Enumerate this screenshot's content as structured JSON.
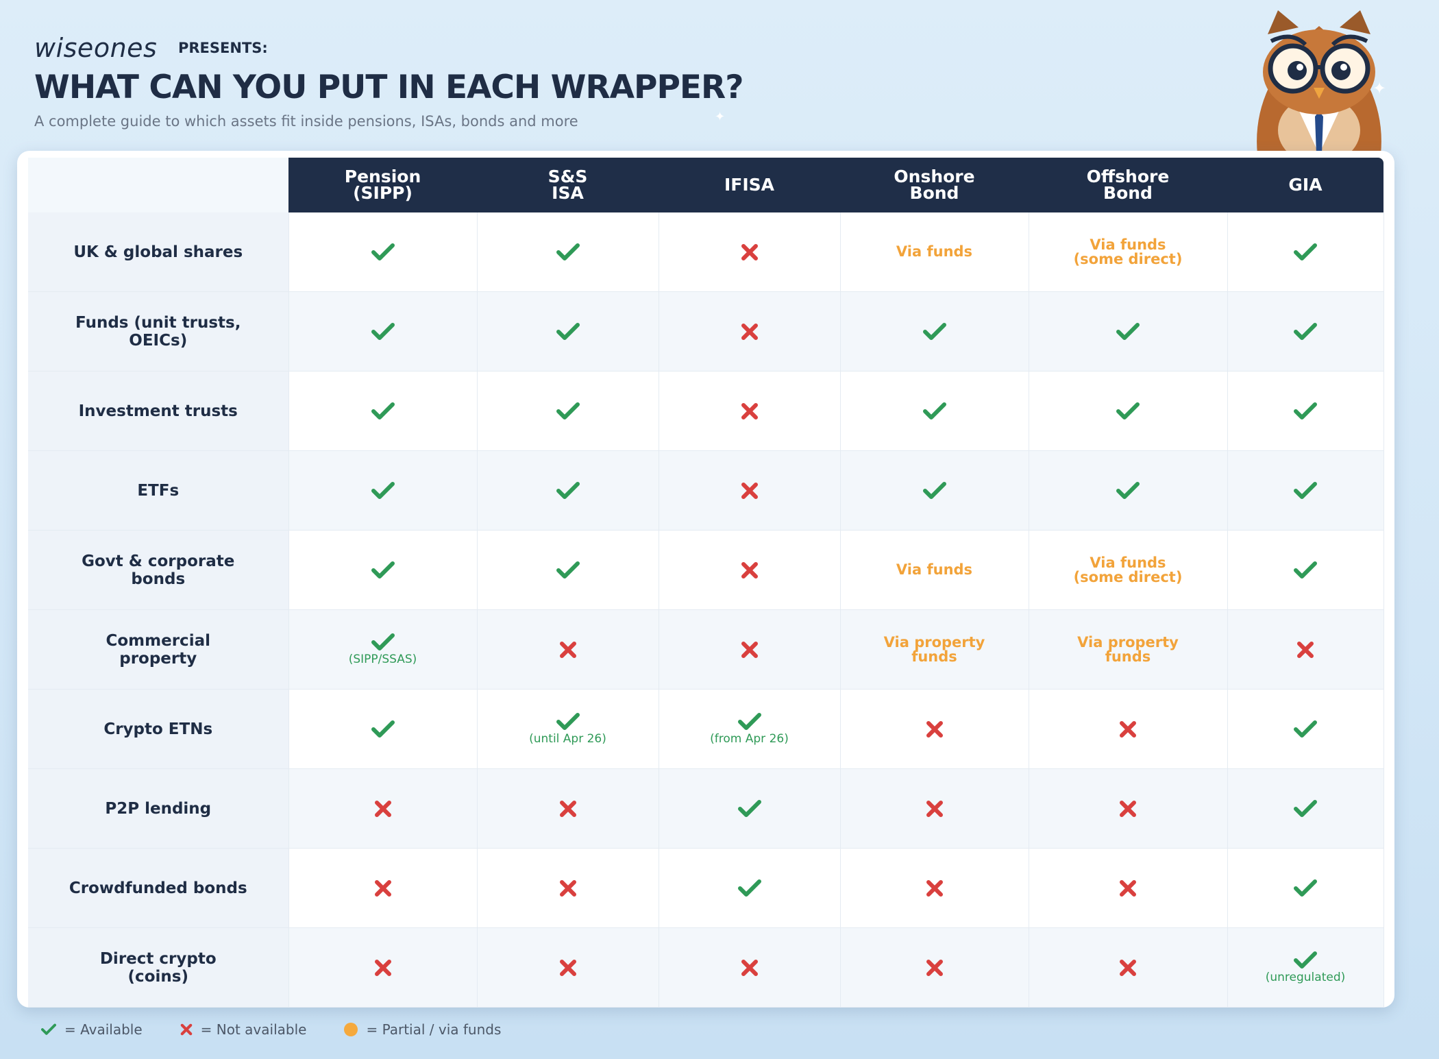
{
  "header": {
    "brand": "wiseones",
    "presents": "PRESENTS:",
    "title": "WHAT CAN YOU PUT IN EACH WRAPPER?",
    "subtitle": "A complete guide to which assets fit inside pensions, ISAs, bonds and more"
  },
  "colors": {
    "navy": "#1f2e48",
    "available": "#2f9a57",
    "not_available": "#d9403e",
    "partial": "#f2a33a"
  },
  "table": {
    "columns": [
      "Pension\n(SIPP)",
      "S&S\nISA",
      "IFISA",
      "Onshore\nBond",
      "Offshore\nBond",
      "GIA"
    ],
    "rows": [
      {
        "label": "UK & global shares",
        "cells": [
          {
            "type": "yes"
          },
          {
            "type": "yes"
          },
          {
            "type": "no"
          },
          {
            "type": "partial",
            "text": "Via funds"
          },
          {
            "type": "partial",
            "text": "Via funds\n(some direct)"
          },
          {
            "type": "yes"
          }
        ]
      },
      {
        "label": "Funds (unit trusts,\nOEICs)",
        "cells": [
          {
            "type": "yes"
          },
          {
            "type": "yes"
          },
          {
            "type": "no"
          },
          {
            "type": "yes"
          },
          {
            "type": "yes"
          },
          {
            "type": "yes"
          }
        ]
      },
      {
        "label": "Investment trusts",
        "cells": [
          {
            "type": "yes"
          },
          {
            "type": "yes"
          },
          {
            "type": "no"
          },
          {
            "type": "yes"
          },
          {
            "type": "yes"
          },
          {
            "type": "yes"
          }
        ]
      },
      {
        "label": "ETFs",
        "cells": [
          {
            "type": "yes"
          },
          {
            "type": "yes"
          },
          {
            "type": "no"
          },
          {
            "type": "yes"
          },
          {
            "type": "yes"
          },
          {
            "type": "yes"
          }
        ]
      },
      {
        "label": "Govt & corporate\nbonds",
        "cells": [
          {
            "type": "yes"
          },
          {
            "type": "yes"
          },
          {
            "type": "no"
          },
          {
            "type": "partial",
            "text": "Via funds"
          },
          {
            "type": "partial",
            "text": "Via funds\n(some direct)"
          },
          {
            "type": "yes"
          }
        ]
      },
      {
        "label": "Commercial\nproperty",
        "cells": [
          {
            "type": "yes",
            "note": "(SIPP/SSAS)"
          },
          {
            "type": "no"
          },
          {
            "type": "no"
          },
          {
            "type": "partial",
            "text": "Via property\nfunds"
          },
          {
            "type": "partial",
            "text": "Via property\nfunds"
          },
          {
            "type": "no"
          }
        ]
      },
      {
        "label": "Crypto ETNs",
        "cells": [
          {
            "type": "yes"
          },
          {
            "type": "yes",
            "note": "(until Apr 26)"
          },
          {
            "type": "yes",
            "note": "(from Apr 26)"
          },
          {
            "type": "no"
          },
          {
            "type": "no"
          },
          {
            "type": "yes"
          }
        ]
      },
      {
        "label": "P2P lending",
        "cells": [
          {
            "type": "no"
          },
          {
            "type": "no"
          },
          {
            "type": "yes"
          },
          {
            "type": "no"
          },
          {
            "type": "no"
          },
          {
            "type": "yes"
          }
        ]
      },
      {
        "label": "Crowdfunded bonds",
        "cells": [
          {
            "type": "no"
          },
          {
            "type": "no"
          },
          {
            "type": "yes"
          },
          {
            "type": "no"
          },
          {
            "type": "no"
          },
          {
            "type": "yes"
          }
        ]
      },
      {
        "label": "Direct crypto\n(coins)",
        "cells": [
          {
            "type": "no"
          },
          {
            "type": "no"
          },
          {
            "type": "no"
          },
          {
            "type": "no"
          },
          {
            "type": "no"
          },
          {
            "type": "yes",
            "note": "(unregulated)"
          }
        ]
      }
    ]
  },
  "legend": {
    "available": "= Available",
    "not_available": "= Not available",
    "partial": "= Partial / via funds"
  }
}
